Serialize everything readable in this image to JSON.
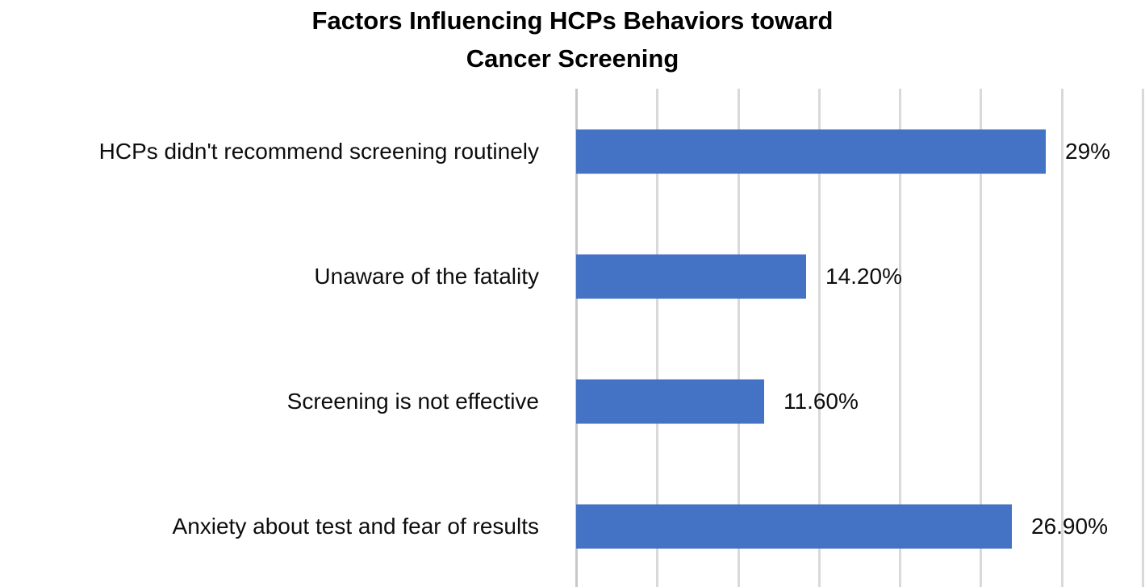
{
  "chart_data": {
    "type": "bar",
    "orientation": "horizontal",
    "title_lines": [
      "Factors Influencing HCPs Behaviors toward",
      "Cancer Screening"
    ],
    "title": "Factors Influencing HCPs Behaviors toward Cancer Screening",
    "categories": [
      "HCPs didn't recommend screening routinely",
      "Unaware of the fatality",
      "Screening is not effective",
      "Anxiety about test and fear of results"
    ],
    "values": [
      29,
      14.2,
      11.6,
      26.9
    ],
    "value_labels": [
      "29%",
      "14.20%",
      "11.60%",
      "26.90%"
    ],
    "xlabel": "",
    "ylabel": "",
    "xlim": [
      0,
      35
    ],
    "tick_step": 5,
    "grid": true,
    "legend": "none",
    "colors": {
      "bar": "#4472C4",
      "gridline": "#D9D9D9",
      "axisline": "#C8C8C8",
      "text": "#0D0D0D",
      "title": "#000000",
      "background": "#FFFFFF"
    }
  }
}
